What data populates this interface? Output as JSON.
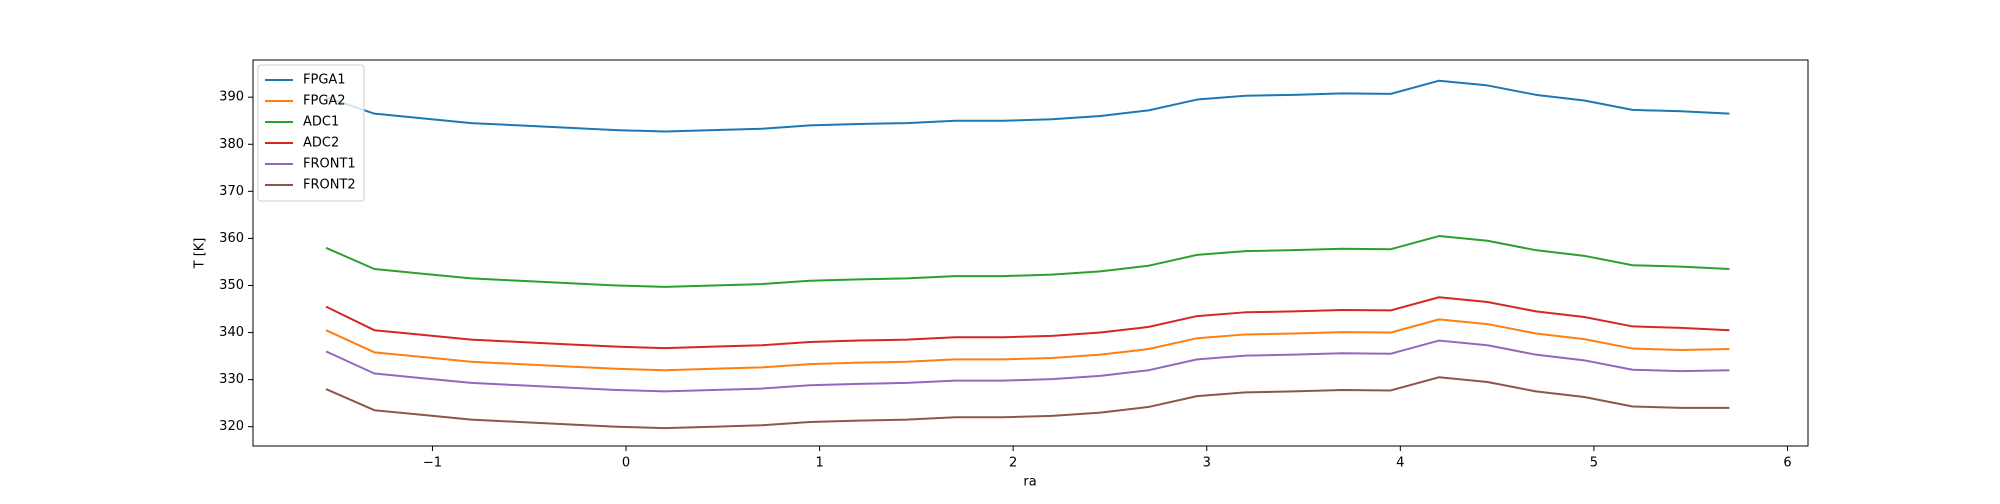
{
  "chart_data": {
    "type": "line",
    "xlabel": "ra",
    "ylabel": "T [K]",
    "x": [
      -1.55,
      -1.3,
      -1.05,
      -0.8,
      -0.55,
      -0.3,
      -0.05,
      0.2,
      0.45,
      0.7,
      0.95,
      1.2,
      1.45,
      1.7,
      1.95,
      2.2,
      2.45,
      2.7,
      2.95,
      3.2,
      3.45,
      3.7,
      3.95,
      4.2,
      4.45,
      4.7,
      4.95,
      5.2,
      5.45,
      5.7
    ],
    "series": [
      {
        "name": "FPGA1",
        "color": "#1f77b4",
        "values": [
          390,
          386.5,
          385.5,
          384.5,
          384,
          383.5,
          383,
          382.7,
          383,
          383.3,
          384,
          384.3,
          384.5,
          385,
          385,
          385.3,
          386,
          387.2,
          389.5,
          390.3,
          390.5,
          390.8,
          390.7,
          393.5,
          392.5,
          390.5,
          389.3,
          387.3,
          387,
          386.5
        ]
      },
      {
        "name": "FPGA2",
        "color": "#ff7f0e",
        "values": [
          340.5,
          335.8,
          334.8,
          333.8,
          333.3,
          332.8,
          332.3,
          332,
          332.3,
          332.6,
          333.3,
          333.6,
          333.8,
          334.3,
          334.3,
          334.6,
          335.3,
          336.5,
          338.8,
          339.6,
          339.8,
          340.1,
          340,
          342.8,
          341.8,
          339.8,
          338.6,
          336.6,
          336.3,
          336.5
        ]
      },
      {
        "name": "ADC1",
        "color": "#2ca02c",
        "values": [
          358,
          353.5,
          352.5,
          351.5,
          351,
          350.5,
          350,
          349.7,
          350,
          350.3,
          351,
          351.3,
          351.5,
          352,
          352,
          352.3,
          353,
          354.2,
          356.5,
          357.3,
          357.5,
          357.8,
          357.7,
          360.5,
          359.5,
          357.5,
          356.3,
          354.3,
          354,
          353.5
        ]
      },
      {
        "name": "ADC2",
        "color": "#d62728",
        "values": [
          345.5,
          340.5,
          339.5,
          338.5,
          338,
          337.5,
          337,
          336.7,
          337,
          337.3,
          338,
          338.3,
          338.5,
          339,
          339,
          339.3,
          340,
          341.2,
          343.5,
          344.3,
          344.5,
          344.8,
          344.7,
          347.5,
          346.5,
          344.5,
          343.3,
          341.3,
          341,
          340.5
        ]
      },
      {
        "name": "FRONT1",
        "color": "#9467bd",
        "values": [
          336,
          331.3,
          330.3,
          329.3,
          328.8,
          328.3,
          327.8,
          327.5,
          327.8,
          328.1,
          328.8,
          329.1,
          329.3,
          329.8,
          329.8,
          330.1,
          330.8,
          332,
          334.3,
          335.1,
          335.3,
          335.6,
          335.5,
          338.3,
          337.3,
          335.3,
          334.1,
          332.1,
          331.8,
          332
        ]
      },
      {
        "name": "FRONT2",
        "color": "#8c564b",
        "values": [
          328,
          323.5,
          322.5,
          321.5,
          321,
          320.5,
          320,
          319.7,
          320,
          320.3,
          321,
          321.3,
          321.5,
          322,
          322,
          322.3,
          323,
          324.2,
          326.5,
          327.3,
          327.5,
          327.8,
          327.7,
          330.5,
          329.5,
          327.5,
          326.3,
          324.3,
          324,
          324
        ]
      }
    ],
    "xlim": [
      -1.927,
      6.106
    ],
    "ylim": [
      315.9,
      397.9
    ],
    "xticks": [
      {
        "value": -1,
        "label": "−1"
      },
      0,
      1,
      2,
      3,
      4,
      5,
      6
    ],
    "yticks": [
      320,
      330,
      340,
      350,
      360,
      370,
      380,
      390
    ],
    "legend": "upper-left"
  }
}
